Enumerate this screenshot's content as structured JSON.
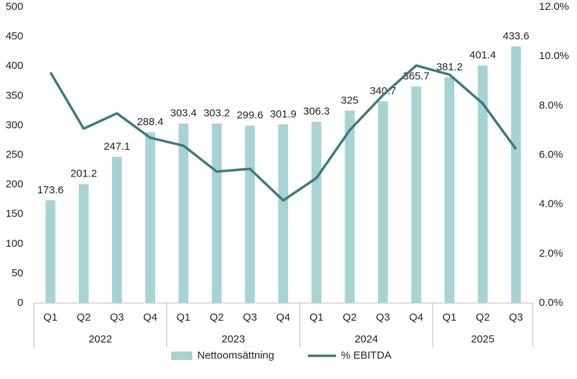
{
  "chart_data": {
    "type": "bar-line",
    "categories": [
      "Q1",
      "Q2",
      "Q3",
      "Q4",
      "Q1",
      "Q2",
      "Q3",
      "Q4",
      "Q1",
      "Q2",
      "Q3",
      "Q4",
      "Q1",
      "Q2",
      "Q3"
    ],
    "groups": [
      "2022",
      "2022",
      "2022",
      "2022",
      "2023",
      "2023",
      "2023",
      "2023",
      "2024",
      "2024",
      "2024",
      "2024",
      "2025",
      "2025",
      "2025"
    ],
    "series": [
      {
        "name": "Nettoomsättning",
        "type": "bar",
        "color": "#a7d3d3",
        "values": [
          173.6,
          201.2,
          247.1,
          288.4,
          303.4,
          303.2,
          299.6,
          301.9,
          306.3,
          325,
          340.7,
          365.7,
          381.2,
          401.4,
          433.6
        ]
      },
      {
        "name": "% EBITDA",
        "type": "line",
        "axis": "y2",
        "color": "#3d7a7a",
        "values": [
          9.35,
          7.07,
          7.69,
          6.7,
          6.38,
          5.33,
          5.44,
          4.16,
          5.07,
          7.01,
          8.43,
          9.63,
          9.26,
          8.09,
          6.24
        ]
      }
    ],
    "ylim": [
      0,
      500
    ],
    "yticks": [
      0,
      50,
      100,
      150,
      200,
      250,
      300,
      350,
      400,
      450,
      500
    ],
    "y2lim": [
      0,
      12
    ],
    "y2ticks": [
      {
        "value": 0,
        "label": "0.0%"
      },
      {
        "value": 2,
        "label": "2.0%"
      },
      {
        "value": 4,
        "label": "4.0%"
      },
      {
        "value": 6,
        "label": "6.0%"
      },
      {
        "value": 8,
        "label": "8.0%"
      },
      {
        "value": 10,
        "label": "10.0%"
      },
      {
        "value": 12,
        "label": "12.0%"
      }
    ],
    "legend": "bottom"
  }
}
